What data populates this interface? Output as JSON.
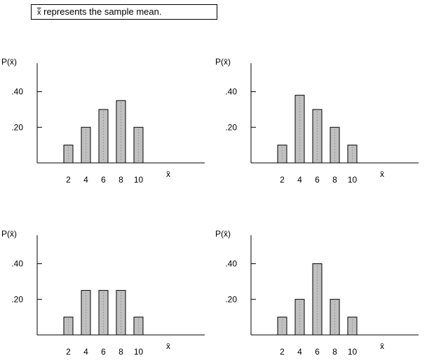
{
  "note": {
    "symbol": "x̄",
    "text": " represents the sample mean."
  },
  "y_label": "P(x̄)",
  "x_label": "x̄",
  "chart_data": [
    {
      "type": "bar",
      "title": "",
      "categories": [
        "2",
        "4",
        "6",
        "8",
        "10"
      ],
      "values": [
        0.1,
        0.2,
        0.3,
        0.35,
        0.2
      ],
      "y_tick_labels": [
        ".20",
        ".40"
      ],
      "y_ticks": [
        0.2,
        0.4
      ],
      "xlabel": "x̄",
      "ylabel": "P(x̄)",
      "ylim": [
        0,
        0.56
      ]
    },
    {
      "type": "bar",
      "title": "",
      "categories": [
        "2",
        "4",
        "6",
        "8",
        "10"
      ],
      "values": [
        0.1,
        0.38,
        0.3,
        0.2,
        0.1
      ],
      "y_tick_labels": [
        ".20",
        ".40"
      ],
      "y_ticks": [
        0.2,
        0.4
      ],
      "xlabel": "x̄",
      "ylabel": "P(x̄)",
      "ylim": [
        0,
        0.56
      ]
    },
    {
      "type": "bar",
      "title": "",
      "categories": [
        "2",
        "4",
        "6",
        "8",
        "10"
      ],
      "values": [
        0.1,
        0.25,
        0.25,
        0.25,
        0.1
      ],
      "y_tick_labels": [
        ".20",
        ".40"
      ],
      "y_ticks": [
        0.2,
        0.4
      ],
      "xlabel": "x̄",
      "ylabel": "P(x̄)",
      "ylim": [
        0,
        0.56
      ]
    },
    {
      "type": "bar",
      "title": "",
      "categories": [
        "2",
        "4",
        "6",
        "8",
        "10"
      ],
      "values": [
        0.1,
        0.2,
        0.4,
        0.2,
        0.1
      ],
      "y_tick_labels": [
        ".20",
        ".40"
      ],
      "y_ticks": [
        0.2,
        0.4
      ],
      "xlabel": "x̄",
      "ylabel": "P(x̄)",
      "ylim": [
        0,
        0.56
      ]
    }
  ]
}
